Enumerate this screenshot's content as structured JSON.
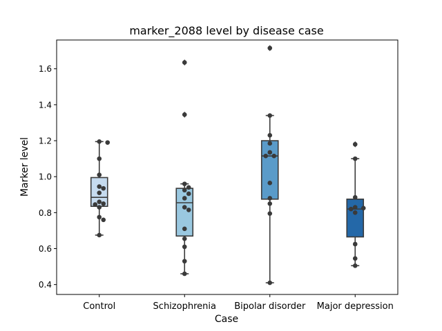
{
  "chart_data": {
    "type": "box",
    "title": "marker_2088 level by disease case",
    "xlabel": "Case",
    "ylabel": "Marker level",
    "ylim": [
      0.345,
      1.76
    ],
    "yticks": [
      0.4,
      0.6,
      0.8,
      1.0,
      1.2,
      1.4,
      1.6
    ],
    "ytick_labels": [
      "0.4",
      "0.6",
      "0.8",
      "1.0",
      "1.2",
      "1.4",
      "1.6"
    ],
    "grid": false,
    "categories": [
      "Control",
      "Schizophrenia",
      "Bipolar disorder",
      "Major depression"
    ],
    "colors": [
      "#c6dbef",
      "#9ac8e0",
      "#5a9bc9",
      "#2468a8"
    ],
    "boxes": [
      {
        "q1": 0.835,
        "median": 0.885,
        "q3": 0.995,
        "whisker_low": 0.675,
        "whisker_high": 1.195,
        "outliers": []
      },
      {
        "q1": 0.67,
        "median": 0.855,
        "q3": 0.935,
        "whisker_low": 0.46,
        "whisker_high": 0.96,
        "outliers": [
          1.345,
          1.635
        ]
      },
      {
        "q1": 0.875,
        "median": 1.115,
        "q3": 1.2,
        "whisker_low": 0.41,
        "whisker_high": 1.34,
        "outliers": [
          1.715
        ]
      },
      {
        "q1": 0.665,
        "median": 0.82,
        "q3": 0.875,
        "whisker_low": 0.505,
        "whisker_high": 1.1,
        "outliers": [
          1.18
        ]
      }
    ],
    "points": [
      [
        1.195,
        1.19,
        1.1,
        1.01,
        0.945,
        0.935,
        0.91,
        0.86,
        0.85,
        0.845,
        0.83,
        0.775,
        0.76,
        0.675
      ],
      [
        1.635,
        1.345,
        0.96,
        0.94,
        0.925,
        0.905,
        0.88,
        0.83,
        0.815,
        0.71,
        0.655,
        0.61,
        0.53,
        0.46
      ],
      [
        1.715,
        1.34,
        1.23,
        1.185,
        1.135,
        1.115,
        1.115,
        0.965,
        0.88,
        0.85,
        0.795,
        0.41
      ],
      [
        1.18,
        1.1,
        0.885,
        0.83,
        0.825,
        0.82,
        0.8,
        0.625,
        0.545,
        0.505
      ]
    ]
  }
}
